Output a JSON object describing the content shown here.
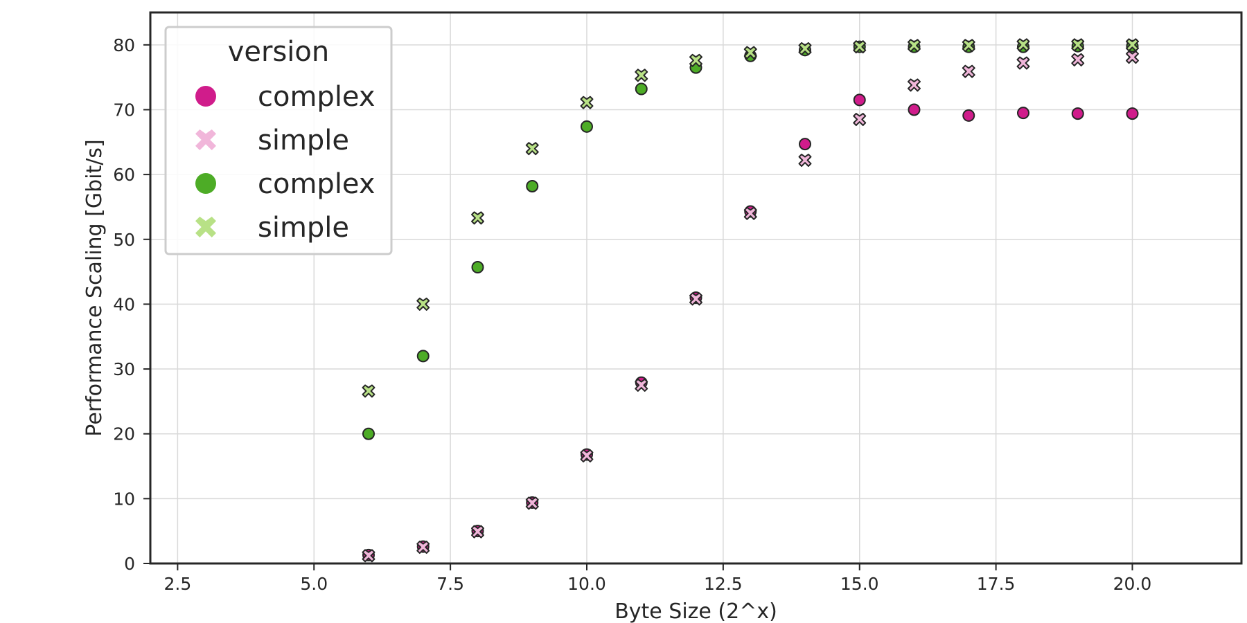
{
  "chart_data": {
    "type": "scatter",
    "xlabel": "Byte Size (2^x)",
    "ylabel": "Performance Scaling [Gbit/s]",
    "xlim": [
      2.0,
      22.0
    ],
    "ylim": [
      0,
      85
    ],
    "x_ticks": [
      "2.5",
      "5.0",
      "7.5",
      "10.0",
      "12.5",
      "15.0",
      "17.5",
      "20.0"
    ],
    "y_ticks": [
      "0",
      "10",
      "20",
      "30",
      "40",
      "50",
      "60",
      "70",
      "80"
    ],
    "grid": true,
    "legend_title": "version",
    "legend_position": "top-left",
    "x": [
      6,
      7,
      8,
      9,
      10,
      11,
      12,
      13,
      14,
      15,
      16,
      17,
      18,
      19,
      20
    ],
    "series": [
      {
        "name": "complex",
        "marker": "circle",
        "color": "#d01c8b",
        "values": [
          1.3,
          2.6,
          5.0,
          9.4,
          16.8,
          27.9,
          41.0,
          54.3,
          64.7,
          71.5,
          70.0,
          69.1,
          69.5,
          69.4,
          69.4
        ]
      },
      {
        "name": "simple",
        "marker": "x",
        "color": "#f1b6da",
        "values": [
          1.2,
          2.5,
          4.9,
          9.3,
          16.6,
          27.5,
          40.8,
          54.0,
          62.2,
          68.5,
          73.8,
          75.9,
          77.2,
          77.7,
          78.1
        ]
      },
      {
        "name": "complex",
        "marker": "circle",
        "color": "#4dac26",
        "values": [
          20.0,
          32.0,
          45.7,
          58.2,
          67.4,
          73.2,
          76.5,
          78.3,
          79.2,
          79.7,
          79.7,
          79.7,
          79.7,
          79.8,
          79.8
        ]
      },
      {
        "name": "simple",
        "marker": "x",
        "color": "#b8e186",
        "values": [
          26.6,
          40.0,
          53.3,
          64.0,
          71.1,
          75.3,
          77.6,
          78.8,
          79.4,
          79.7,
          79.9,
          79.9,
          80.0,
          80.0,
          80.0
        ]
      }
    ]
  }
}
